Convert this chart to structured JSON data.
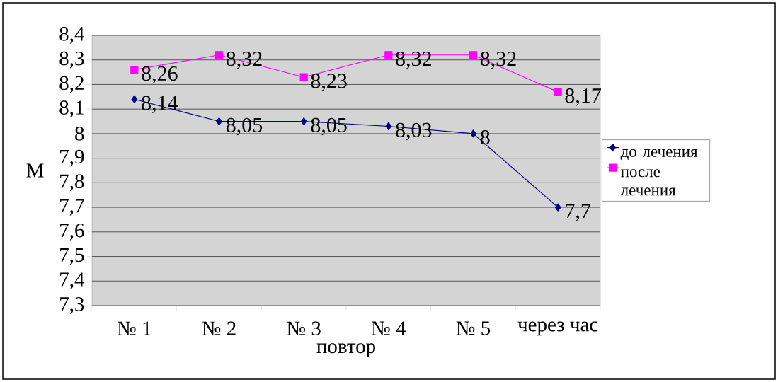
{
  "chart_data": {
    "type": "line",
    "xlabel": "повтор",
    "ylabel": "M",
    "categories": [
      "№ 1",
      "№ 2",
      "№ 3",
      "№ 4",
      "№ 5",
      "через час"
    ],
    "series": [
      {
        "name": "до лечения",
        "color": "#000080",
        "marker": "diamond",
        "values": [
          8.14,
          8.05,
          8.05,
          8.03,
          8,
          7.7
        ],
        "value_labels": [
          "8,14",
          "8,05",
          "8,05",
          "8,03",
          "8",
          "7,7"
        ]
      },
      {
        "name": "после лечения",
        "color": "#ff00ff",
        "marker": "square",
        "values": [
          8.26,
          8.32,
          8.23,
          8.32,
          8.32,
          8.17
        ],
        "value_labels": [
          "8,26",
          "8,32",
          "8,23",
          "8,32",
          "8,32",
          "8,17"
        ]
      }
    ],
    "ylim": [
      7.3,
      8.4
    ],
    "yticks": [
      {
        "value": 7.3,
        "label": "7,3"
      },
      {
        "value": 7.4,
        "label": "7,4"
      },
      {
        "value": 7.5,
        "label": "7,5"
      },
      {
        "value": 7.6,
        "label": "7,6"
      },
      {
        "value": 7.7,
        "label": "7,7"
      },
      {
        "value": 7.8,
        "label": "7,8"
      },
      {
        "value": 7.9,
        "label": "7,9"
      },
      {
        "value": 8,
        "label": "8"
      },
      {
        "value": 8.1,
        "label": "8,1"
      },
      {
        "value": 8.2,
        "label": "8,2"
      },
      {
        "value": 8.3,
        "label": "8,3"
      },
      {
        "value": 8.4,
        "label": "8,4"
      }
    ],
    "grid": "y",
    "legend": "right"
  }
}
